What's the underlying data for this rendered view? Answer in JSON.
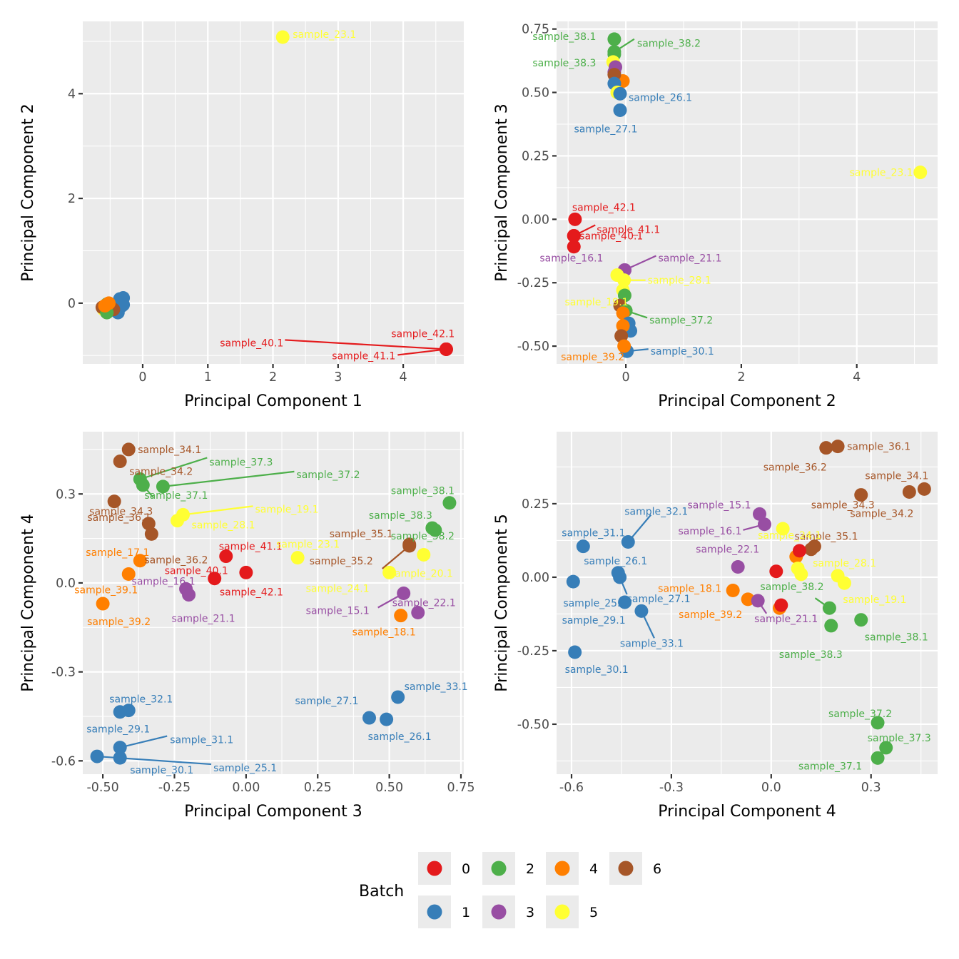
{
  "chart_data": {
    "type": "scatter",
    "colors": {
      "0": "#e41a1c",
      "1": "#377eb8",
      "2": "#4daf4a",
      "3": "#984ea3",
      "4": "#ff7f00",
      "5": "#ffff33",
      "6": "#a65628"
    },
    "legend": {
      "title": "Batch",
      "placement": "bottom",
      "entries": [
        "0",
        "2",
        "4",
        "6",
        "1",
        "3",
        "5"
      ]
    },
    "panels": [
      {
        "id": "pc1-vs-pc2",
        "xlabel": "Principal Component 1",
        "ylabel": "Principal Component 2",
        "xlim": [
          -0.92,
          4.93
        ],
        "ylim": [
          -1.16,
          5.38
        ],
        "xticks": [
          0,
          1,
          2,
          3,
          4
        ],
        "xtick_labels": [
          "0",
          "1",
          "2",
          "3",
          "4"
        ],
        "yticks": [
          0,
          2,
          4
        ],
        "ytick_labels": [
          "0",
          "2",
          "4"
        ],
        "points": [
          {
            "x": -0.35,
            "y": 0.08,
            "batch": "1"
          },
          {
            "x": -0.3,
            "y": 0.1,
            "batch": "1"
          },
          {
            "x": -0.32,
            "y": -0.05,
            "batch": "1"
          },
          {
            "x": -0.38,
            "y": -0.18,
            "batch": "1"
          },
          {
            "x": -0.3,
            "y": -0.03,
            "batch": "1"
          },
          {
            "x": -0.6,
            "y": -0.12,
            "batch": "5"
          },
          {
            "x": -0.62,
            "y": -0.08,
            "batch": "6"
          },
          {
            "x": -0.45,
            "y": -0.12,
            "batch": "6"
          },
          {
            "x": -0.55,
            "y": -0.02,
            "batch": "2"
          },
          {
            "x": -0.55,
            "y": -0.18,
            "batch": "2"
          },
          {
            "x": -0.58,
            "y": -0.05,
            "batch": "4"
          },
          {
            "x": -0.52,
            "y": 0.0,
            "batch": "4"
          },
          {
            "x": 2.15,
            "y": 5.08,
            "batch": "5",
            "label": "sample_23.1"
          },
          {
            "x": 4.66,
            "y": -0.88,
            "batch": "0",
            "label": "sample_42.1"
          },
          {
            "x": 4.66,
            "y": -0.88,
            "batch": "0",
            "label": "sample_40.1"
          },
          {
            "x": 4.66,
            "y": -0.88,
            "batch": "0",
            "label": "sample_41.1"
          }
        ]
      },
      {
        "id": "pc2-vs-pc3",
        "xlabel": "Principal Component 2",
        "ylabel": "Principal Component 3",
        "xlim": [
          -1.2,
          5.4
        ],
        "ylim": [
          -0.57,
          0.78
        ],
        "xticks": [
          0,
          2,
          4
        ],
        "xtick_labels": [
          "0",
          "2",
          "4"
        ],
        "yticks": [
          0.75,
          0.5,
          0.25,
          0.0,
          -0.25,
          -0.5
        ],
        "ytick_labels": [
          "0.75",
          "0.50",
          "0.25",
          "0.00",
          "-0.25",
          "-0.50"
        ],
        "points": [
          {
            "x": -0.2,
            "y": 0.71,
            "batch": "2",
            "label": "sample_38.1"
          },
          {
            "x": -0.2,
            "y": 0.66,
            "batch": "2",
            "label": "sample_38.2"
          },
          {
            "x": -0.2,
            "y": 0.65,
            "batch": "2",
            "label": "sample_38.3"
          },
          {
            "x": -0.22,
            "y": 0.62,
            "batch": "5"
          },
          {
            "x": -0.18,
            "y": 0.6,
            "batch": "3"
          },
          {
            "x": -0.2,
            "y": 0.58,
            "batch": "3"
          },
          {
            "x": -0.05,
            "y": 0.545,
            "batch": "4"
          },
          {
            "x": -0.2,
            "y": 0.57,
            "batch": "6"
          },
          {
            "x": -0.2,
            "y": 0.535,
            "batch": "1"
          },
          {
            "x": -0.15,
            "y": 0.5,
            "batch": "5"
          },
          {
            "x": -0.1,
            "y": 0.495,
            "batch": "1",
            "label": "sample_26.1"
          },
          {
            "x": -0.1,
            "y": 0.43,
            "batch": "1",
            "label": "sample_27.1"
          },
          {
            "x": 5.1,
            "y": 0.185,
            "batch": "5",
            "label": "sample_23.1"
          },
          {
            "x": -0.88,
            "y": 0.0,
            "batch": "0",
            "label": "sample_42.1"
          },
          {
            "x": -0.9,
            "y": -0.065,
            "batch": "0",
            "label": "sample_41.1"
          },
          {
            "x": -0.9,
            "y": -0.065,
            "batch": "0",
            "label": "sample_40.1"
          },
          {
            "x": -0.9,
            "y": -0.108,
            "batch": "0"
          },
          {
            "x": -0.02,
            "y": -0.2,
            "batch": "3",
            "label": "sample_21.1"
          },
          {
            "x": -0.02,
            "y": -0.2,
            "batch": "3",
            "label": "sample_16.1"
          },
          {
            "x": -0.15,
            "y": -0.22,
            "batch": "5"
          },
          {
            "x": -0.03,
            "y": -0.24,
            "batch": "5",
            "label": "sample_28.1"
          },
          {
            "x": -0.05,
            "y": -0.28,
            "batch": "5",
            "label": "sample_19.1"
          },
          {
            "x": -0.02,
            "y": -0.3,
            "batch": "2"
          },
          {
            "x": -0.1,
            "y": -0.34,
            "batch": "6"
          },
          {
            "x": 0.0,
            "y": -0.36,
            "batch": "2",
            "label": "sample_37.2"
          },
          {
            "x": -0.05,
            "y": -0.37,
            "batch": "4"
          },
          {
            "x": 0.05,
            "y": -0.41,
            "batch": "1"
          },
          {
            "x": 0.08,
            "y": -0.44,
            "batch": "1"
          },
          {
            "x": -0.05,
            "y": -0.42,
            "batch": "4"
          },
          {
            "x": -0.08,
            "y": -0.46,
            "batch": "6"
          },
          {
            "x": 0.02,
            "y": -0.52,
            "batch": "1",
            "label": "sample_30.1"
          },
          {
            "x": -0.03,
            "y": -0.5,
            "batch": "4",
            "label": "sample_39.2"
          }
        ]
      },
      {
        "id": "pc3-vs-pc4",
        "xlabel": "Principal Component 3",
        "ylabel": "Principal Component 4",
        "xlim": [
          -0.57,
          0.76
        ],
        "ylim": [
          -0.645,
          0.51
        ],
        "xticks": [
          -0.5,
          -0.25,
          0.0,
          0.25,
          0.5,
          0.75
        ],
        "xtick_labels": [
          "-0.50",
          "-0.25",
          "0.00",
          "0.25",
          "0.50",
          "0.75"
        ],
        "yticks": [
          0.3,
          0.0,
          -0.3,
          -0.6
        ],
        "ytick_labels": [
          "0.3",
          "0.0",
          "-0.3",
          "-0.6"
        ],
        "points": [
          {
            "x": -0.41,
            "y": 0.45,
            "batch": "6",
            "label": "sample_34.1"
          },
          {
            "x": -0.44,
            "y": 0.41,
            "batch": "6",
            "label": "sample_34.2"
          },
          {
            "x": -0.46,
            "y": 0.275,
            "batch": "6",
            "label": "sample_34.3"
          },
          {
            "x": -0.34,
            "y": 0.2,
            "batch": "6",
            "label": "sample_36.1"
          },
          {
            "x": -0.33,
            "y": 0.165,
            "batch": "6",
            "label": "sample_36.2"
          },
          {
            "x": -0.37,
            "y": 0.35,
            "batch": "2",
            "label": "sample_37.3"
          },
          {
            "x": -0.36,
            "y": 0.33,
            "batch": "2",
            "label": "sample_37.1"
          },
          {
            "x": -0.29,
            "y": 0.325,
            "batch": "2",
            "label": "sample_37.2"
          },
          {
            "x": -0.22,
            "y": 0.23,
            "batch": "5",
            "label": "sample_19.1"
          },
          {
            "x": -0.24,
            "y": 0.21,
            "batch": "5",
            "label": "sample_28.1"
          },
          {
            "x": -0.37,
            "y": 0.075,
            "batch": "4",
            "label": "sample_17.1"
          },
          {
            "x": -0.41,
            "y": 0.03,
            "batch": "4",
            "label": "sample_39.1"
          },
          {
            "x": -0.5,
            "y": -0.07,
            "batch": "4",
            "label": "sample_39.2"
          },
          {
            "x": -0.07,
            "y": 0.09,
            "batch": "0",
            "label": "sample_41.1"
          },
          {
            "x": -0.11,
            "y": 0.015,
            "batch": "0",
            "label": "sample_40.1"
          },
          {
            "x": 0.0,
            "y": 0.035,
            "batch": "0",
            "label": "sample_42.1"
          },
          {
            "x": -0.21,
            "y": -0.02,
            "batch": "3",
            "label": "sample_16.1"
          },
          {
            "x": -0.2,
            "y": -0.04,
            "batch": "3",
            "label": "sample_21.1"
          },
          {
            "x": 0.18,
            "y": 0.085,
            "batch": "5",
            "label": "sample_23.1"
          },
          {
            "x": 0.57,
            "y": 0.13,
            "batch": "6",
            "label": "sample_35.1"
          },
          {
            "x": 0.57,
            "y": 0.125,
            "batch": "6",
            "label": "sample_35.2"
          },
          {
            "x": 0.71,
            "y": 0.27,
            "batch": "2",
            "label": "sample_38.1"
          },
          {
            "x": 0.65,
            "y": 0.185,
            "batch": "2",
            "label": "sample_38.3"
          },
          {
            "x": 0.66,
            "y": 0.178,
            "batch": "2",
            "label": "sample_38.2"
          },
          {
            "x": 0.62,
            "y": 0.095,
            "batch": "5",
            "label": "sample_20.1"
          },
          {
            "x": 0.5,
            "y": 0.035,
            "batch": "5",
            "label": "sample_24.1"
          },
          {
            "x": 0.55,
            "y": -0.035,
            "batch": "3",
            "label": "sample_15.1"
          },
          {
            "x": 0.6,
            "y": -0.1,
            "batch": "3",
            "label": "sample_22.1"
          },
          {
            "x": 0.54,
            "y": -0.11,
            "batch": "4",
            "label": "sample_18.1"
          },
          {
            "x": -0.41,
            "y": -0.43,
            "batch": "1",
            "label": "sample_32.1"
          },
          {
            "x": -0.44,
            "y": -0.435,
            "batch": "1",
            "label": "sample_29.1"
          },
          {
            "x": 0.53,
            "y": -0.385,
            "batch": "1",
            "label": "sample_33.1"
          },
          {
            "x": 0.43,
            "y": -0.455,
            "batch": "1",
            "label": "sample_27.1"
          },
          {
            "x": 0.49,
            "y": -0.46,
            "batch": "1",
            "label": "sample_26.1"
          },
          {
            "x": -0.44,
            "y": -0.555,
            "batch": "1",
            "label": "sample_31.1"
          },
          {
            "x": -0.52,
            "y": -0.585,
            "batch": "1",
            "label": "sample_25.1"
          },
          {
            "x": -0.44,
            "y": -0.59,
            "batch": "1",
            "label": "sample_30.1"
          }
        ]
      },
      {
        "id": "pc4-vs-pc5",
        "xlabel": "Principal Component 4",
        "ylabel": "Principal Component 5",
        "xlim": [
          -0.645,
          0.5
        ],
        "ylim": [
          -0.67,
          0.495
        ],
        "xticks": [
          -0.6,
          -0.3,
          0.0,
          0.3
        ],
        "xtick_labels": [
          "-0.6",
          "-0.3",
          "0.0",
          "0.3"
        ],
        "yticks": [
          0.25,
          0.0,
          -0.25,
          -0.5
        ],
        "ytick_labels": [
          "0.25",
          "0.00",
          "-0.25",
          "-0.50"
        ],
        "points": [
          {
            "x": 0.2,
            "y": 0.445,
            "batch": "6",
            "label": "sample_36.1"
          },
          {
            "x": 0.165,
            "y": 0.44,
            "batch": "6",
            "label": "sample_36.2"
          },
          {
            "x": 0.46,
            "y": 0.3,
            "batch": "6",
            "label": "sample_34.1"
          },
          {
            "x": 0.415,
            "y": 0.29,
            "batch": "6",
            "label": "sample_34.2"
          },
          {
            "x": 0.27,
            "y": 0.28,
            "batch": "6",
            "label": "sample_34.3"
          },
          {
            "x": 0.13,
            "y": 0.105,
            "batch": "6",
            "label": "sample_35.1"
          },
          {
            "x": 0.12,
            "y": 0.095,
            "batch": "6"
          },
          {
            "x": -0.035,
            "y": 0.215,
            "batch": "3",
            "label": "sample_15.1"
          },
          {
            "x": -0.02,
            "y": 0.18,
            "batch": "3",
            "label": "sample_16.1"
          },
          {
            "x": 0.035,
            "y": 0.165,
            "batch": "5",
            "label": "sample_24.1"
          },
          {
            "x": -0.1,
            "y": 0.035,
            "batch": "3",
            "label": "sample_22.1"
          },
          {
            "x": 0.075,
            "y": 0.07,
            "batch": "4"
          },
          {
            "x": 0.085,
            "y": 0.09,
            "batch": "0"
          },
          {
            "x": 0.015,
            "y": 0.02,
            "batch": "0"
          },
          {
            "x": 0.08,
            "y": 0.03,
            "batch": "5"
          },
          {
            "x": 0.09,
            "y": 0.01,
            "batch": "5"
          },
          {
            "x": 0.2,
            "y": 0.005,
            "batch": "5",
            "label": "sample_28.1"
          },
          {
            "x": 0.22,
            "y": -0.02,
            "batch": "5",
            "label": "sample_19.1"
          },
          {
            "x": -0.115,
            "y": -0.045,
            "batch": "4",
            "label": "sample_18.1"
          },
          {
            "x": -0.07,
            "y": -0.075,
            "batch": "4",
            "label": "sample_39.2"
          },
          {
            "x": -0.04,
            "y": -0.08,
            "batch": "3",
            "label": "sample_21.1"
          },
          {
            "x": 0.025,
            "y": -0.105,
            "batch": "4"
          },
          {
            "x": 0.03,
            "y": -0.095,
            "batch": "0"
          },
          {
            "x": 0.175,
            "y": -0.105,
            "batch": "2",
            "label": "sample_38.2"
          },
          {
            "x": 0.27,
            "y": -0.145,
            "batch": "2",
            "label": "sample_38.1"
          },
          {
            "x": 0.18,
            "y": -0.165,
            "batch": "2",
            "label": "sample_38.3"
          },
          {
            "x": 0.32,
            "y": -0.495,
            "batch": "2",
            "label": "sample_37.2"
          },
          {
            "x": 0.345,
            "y": -0.58,
            "batch": "2",
            "label": "sample_37.3"
          },
          {
            "x": 0.32,
            "y": -0.615,
            "batch": "2",
            "label": "sample_37.1"
          },
          {
            "x": -0.43,
            "y": 0.12,
            "batch": "1",
            "label": "sample_32.1"
          },
          {
            "x": -0.565,
            "y": 0.105,
            "batch": "1",
            "label": "sample_31.1"
          },
          {
            "x": -0.46,
            "y": 0.015,
            "batch": "1",
            "label": "sample_26.1"
          },
          {
            "x": -0.455,
            "y": 0.0,
            "batch": "1",
            "label": "sample_27.1"
          },
          {
            "x": -0.595,
            "y": -0.015,
            "batch": "1",
            "label": "sample_25.1"
          },
          {
            "x": -0.44,
            "y": -0.085,
            "batch": "1",
            "label": "sample_29.1"
          },
          {
            "x": -0.39,
            "y": -0.115,
            "batch": "1",
            "label": "sample_33.1"
          },
          {
            "x": -0.59,
            "y": -0.255,
            "batch": "1",
            "label": "sample_30.1"
          }
        ]
      }
    ]
  }
}
